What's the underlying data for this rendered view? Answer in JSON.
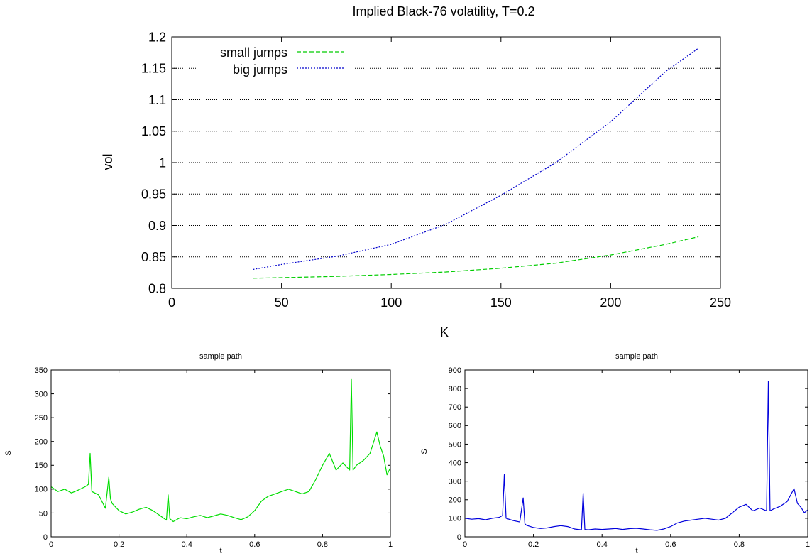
{
  "chart_data": [
    {
      "type": "line",
      "title": "Implied Black-76 volatility, T=0.2",
      "xlabel": "K",
      "ylabel": "vol",
      "xlim": [
        0,
        250
      ],
      "ylim": [
        0.8,
        1.2
      ],
      "xticks": [
        "0",
        "50",
        "100",
        "150",
        "200",
        "250"
      ],
      "yticks": [
        "0.8",
        "0.85",
        "0.9",
        "0.95",
        "1",
        "1.05",
        "1.1",
        "1.15",
        "1.2"
      ],
      "grid": "horizontal",
      "legend_position": "top-left",
      "series": [
        {
          "name": "small jumps",
          "color": "#00cc00",
          "style": "dashed",
          "x": [
            37,
            50,
            75,
            100,
            125,
            150,
            175,
            200,
            225,
            240
          ],
          "y": [
            0.816,
            0.817,
            0.819,
            0.822,
            0.826,
            0.832,
            0.84,
            0.853,
            0.87,
            0.882
          ]
        },
        {
          "name": "big jumps",
          "color": "#0000cc",
          "style": "dotted",
          "x": [
            37,
            50,
            75,
            100,
            125,
            150,
            175,
            200,
            225,
            240
          ],
          "y": [
            0.83,
            0.838,
            0.851,
            0.87,
            0.902,
            0.948,
            1.0,
            1.065,
            1.145,
            1.182
          ]
        }
      ]
    },
    {
      "type": "line",
      "title": "sample path",
      "xlabel": "t",
      "ylabel": "S",
      "xlim": [
        0,
        1
      ],
      "ylim": [
        0,
        350
      ],
      "xticks": [
        "0",
        "0.2",
        "0.4",
        "0.6",
        "0.8",
        "1"
      ],
      "yticks": [
        "0",
        "50",
        "100",
        "150",
        "200",
        "250",
        "300",
        "350"
      ],
      "series": [
        {
          "color": "#00dd00",
          "x": [
            0,
            0.02,
            0.04,
            0.06,
            0.08,
            0.1,
            0.11,
            0.115,
            0.12,
            0.14,
            0.16,
            0.17,
            0.175,
            0.18,
            0.2,
            0.22,
            0.24,
            0.26,
            0.28,
            0.3,
            0.32,
            0.33,
            0.34,
            0.345,
            0.35,
            0.36,
            0.38,
            0.4,
            0.42,
            0.44,
            0.46,
            0.48,
            0.5,
            0.52,
            0.54,
            0.56,
            0.58,
            0.6,
            0.62,
            0.64,
            0.66,
            0.68,
            0.7,
            0.72,
            0.74,
            0.76,
            0.78,
            0.8,
            0.82,
            0.84,
            0.86,
            0.88,
            0.885,
            0.89,
            0.895,
            0.9,
            0.92,
            0.94,
            0.96,
            0.97,
            0.98,
            0.99,
            1.0
          ],
          "y": [
            105,
            95,
            100,
            92,
            98,
            105,
            110,
            175,
            95,
            88,
            60,
            125,
            80,
            70,
            55,
            48,
            52,
            58,
            62,
            55,
            45,
            40,
            35,
            88,
            38,
            32,
            40,
            38,
            42,
            45,
            40,
            44,
            48,
            45,
            40,
            36,
            42,
            55,
            75,
            85,
            90,
            95,
            100,
            95,
            90,
            95,
            120,
            150,
            175,
            140,
            155,
            140,
            330,
            140,
            145,
            150,
            160,
            175,
            220,
            190,
            170,
            130,
            145
          ]
        }
      ]
    },
    {
      "type": "line",
      "title": "sample path",
      "xlabel": "t",
      "ylabel": "S",
      "xlim": [
        0,
        1
      ],
      "ylim": [
        0,
        900
      ],
      "xticks": [
        "0",
        "0.2",
        "0.4",
        "0.6",
        "0.8",
        "1"
      ],
      "yticks": [
        "0",
        "100",
        "200",
        "300",
        "400",
        "500",
        "600",
        "700",
        "800",
        "900"
      ],
      "series": [
        {
          "color": "#0000dd",
          "x": [
            0,
            0.02,
            0.04,
            0.06,
            0.08,
            0.1,
            0.11,
            0.115,
            0.12,
            0.14,
            0.16,
            0.17,
            0.175,
            0.18,
            0.2,
            0.22,
            0.24,
            0.26,
            0.28,
            0.3,
            0.32,
            0.33,
            0.34,
            0.345,
            0.35,
            0.36,
            0.38,
            0.4,
            0.42,
            0.44,
            0.46,
            0.48,
            0.5,
            0.52,
            0.54,
            0.56,
            0.58,
            0.6,
            0.62,
            0.64,
            0.66,
            0.68,
            0.7,
            0.72,
            0.74,
            0.76,
            0.78,
            0.8,
            0.82,
            0.84,
            0.86,
            0.88,
            0.885,
            0.89,
            0.895,
            0.9,
            0.92,
            0.94,
            0.96,
            0.97,
            0.98,
            0.99,
            1.0
          ],
          "y": [
            100,
            95,
            98,
            92,
            100,
            105,
            115,
            335,
            100,
            88,
            80,
            210,
            70,
            62,
            50,
            45,
            48,
            55,
            60,
            55,
            42,
            40,
            38,
            235,
            40,
            38,
            42,
            40,
            42,
            45,
            40,
            44,
            46,
            42,
            38,
            35,
            42,
            55,
            75,
            85,
            90,
            95,
            100,
            95,
            90,
            100,
            130,
            160,
            175,
            140,
            155,
            140,
            840,
            140,
            145,
            150,
            165,
            190,
            260,
            180,
            160,
            130,
            145
          ]
        }
      ]
    }
  ]
}
